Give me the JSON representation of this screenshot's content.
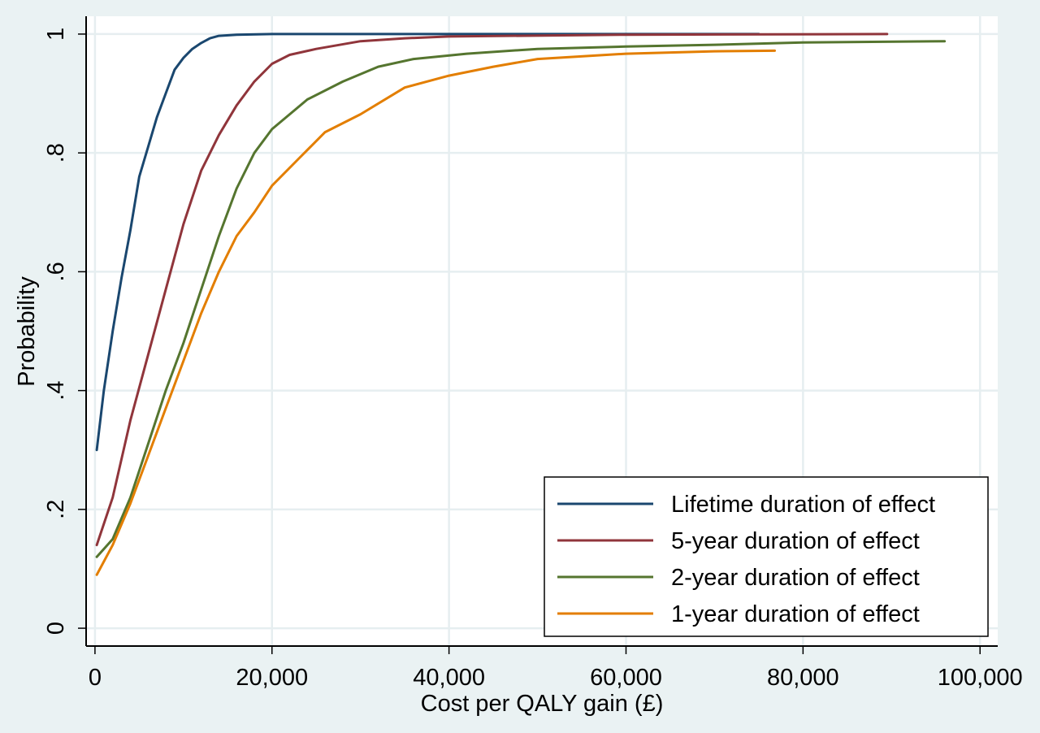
{
  "chart_data": {
    "type": "line",
    "title": "",
    "xlabel": "Cost per QALY gain (£)",
    "ylabel": "Probability",
    "xlim": [
      -1000,
      102000
    ],
    "ylim": [
      -0.03,
      1.03
    ],
    "x_ticks": [
      {
        "value": 0,
        "label": "0"
      },
      {
        "value": 20000,
        "label": "20,000"
      },
      {
        "value": 40000,
        "label": "40,000"
      },
      {
        "value": 60000,
        "label": "60,000"
      },
      {
        "value": 80000,
        "label": "80,000"
      },
      {
        "value": 100000,
        "label": "100,000"
      }
    ],
    "y_ticks": [
      {
        "value": 0,
        "label": "0"
      },
      {
        "value": 0.2,
        "label": ".2"
      },
      {
        "value": 0.4,
        "label": ".4"
      },
      {
        "value": 0.6,
        "label": ".6"
      },
      {
        "value": 0.8,
        "label": ".8"
      },
      {
        "value": 1,
        "label": "1"
      }
    ],
    "grid": true,
    "legend_position": "bottom-right",
    "colors": {
      "page_background": "#eaf2f3",
      "plot_background": "#ffffff",
      "grid": "#e6eef0",
      "axis": "#000000"
    },
    "series": [
      {
        "name": "Lifetime duration of effect",
        "color": "#1a476f",
        "points": [
          [
            200,
            0.3
          ],
          [
            1000,
            0.4
          ],
          [
            2000,
            0.5
          ],
          [
            3000,
            0.59
          ],
          [
            4000,
            0.67
          ],
          [
            5000,
            0.76
          ],
          [
            6000,
            0.81
          ],
          [
            7000,
            0.86
          ],
          [
            8000,
            0.9
          ],
          [
            9000,
            0.94
          ],
          [
            10000,
            0.96
          ],
          [
            11000,
            0.975
          ],
          [
            12000,
            0.985
          ],
          [
            13000,
            0.993
          ],
          [
            14000,
            0.997
          ],
          [
            16000,
            0.999
          ],
          [
            20000,
            1.0
          ],
          [
            40000,
            1.0
          ],
          [
            60000,
            1.0
          ],
          [
            75000,
            1.0
          ]
        ]
      },
      {
        "name": "5-year duration of effect",
        "color": "#90353b",
        "points": [
          [
            200,
            0.14
          ],
          [
            2000,
            0.22
          ],
          [
            4000,
            0.35
          ],
          [
            6000,
            0.46
          ],
          [
            8000,
            0.57
          ],
          [
            10000,
            0.68
          ],
          [
            12000,
            0.77
          ],
          [
            14000,
            0.83
          ],
          [
            16000,
            0.88
          ],
          [
            18000,
            0.92
          ],
          [
            20000,
            0.95
          ],
          [
            22000,
            0.965
          ],
          [
            25000,
            0.975
          ],
          [
            30000,
            0.988
          ],
          [
            35000,
            0.993
          ],
          [
            40000,
            0.996
          ],
          [
            60000,
            0.999
          ],
          [
            89500,
            1.0
          ]
        ]
      },
      {
        "name": "2-year duration of effect",
        "color": "#55752f",
        "points": [
          [
            200,
            0.12
          ],
          [
            2000,
            0.15
          ],
          [
            4000,
            0.22
          ],
          [
            6000,
            0.31
          ],
          [
            8000,
            0.4
          ],
          [
            10000,
            0.48
          ],
          [
            12000,
            0.57
          ],
          [
            14000,
            0.66
          ],
          [
            16000,
            0.74
          ],
          [
            18000,
            0.8
          ],
          [
            20000,
            0.84
          ],
          [
            24000,
            0.89
          ],
          [
            28000,
            0.92
          ],
          [
            32000,
            0.945
          ],
          [
            36000,
            0.958
          ],
          [
            42000,
            0.967
          ],
          [
            50000,
            0.975
          ],
          [
            60000,
            0.979
          ],
          [
            70000,
            0.982
          ],
          [
            80000,
            0.986
          ],
          [
            96000,
            0.988
          ]
        ]
      },
      {
        "name": "1-year duration of effect",
        "color": "#e37e00",
        "points": [
          [
            200,
            0.09
          ],
          [
            2000,
            0.14
          ],
          [
            4000,
            0.21
          ],
          [
            6000,
            0.29
          ],
          [
            8000,
            0.37
          ],
          [
            10000,
            0.45
          ],
          [
            12000,
            0.53
          ],
          [
            14000,
            0.6
          ],
          [
            16000,
            0.66
          ],
          [
            18000,
            0.7
          ],
          [
            20000,
            0.745
          ],
          [
            23000,
            0.79
          ],
          [
            26000,
            0.835
          ],
          [
            30000,
            0.865
          ],
          [
            35000,
            0.91
          ],
          [
            40000,
            0.93
          ],
          [
            45000,
            0.945
          ],
          [
            50000,
            0.958
          ],
          [
            60000,
            0.967
          ],
          [
            70000,
            0.971
          ],
          [
            76800,
            0.972
          ]
        ]
      }
    ]
  }
}
